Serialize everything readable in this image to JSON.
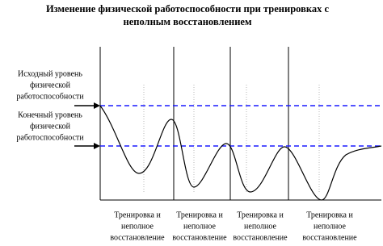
{
  "title": [
    "Изменение физической работоспособности при тренировках с",
    "неполным восстановлением"
  ],
  "levels": [
    {
      "lines": [
        "Исходный уровень",
        "физической",
        "работоспособности"
      ]
    },
    {
      "lines": [
        "Конечный уровень",
        "физической",
        "работоспособности"
      ]
    }
  ],
  "segments": [
    {
      "lines": [
        "Тренировка и",
        "неполное",
        "восстановление"
      ]
    },
    {
      "lines": [
        "Тренировка и",
        "неполное",
        "восстановление"
      ]
    },
    {
      "lines": [
        "Тренировка и",
        "неполное",
        "восстановление"
      ]
    },
    {
      "lines": [
        "Тренировка и",
        "неполное",
        "восстановление"
      ]
    }
  ]
}
